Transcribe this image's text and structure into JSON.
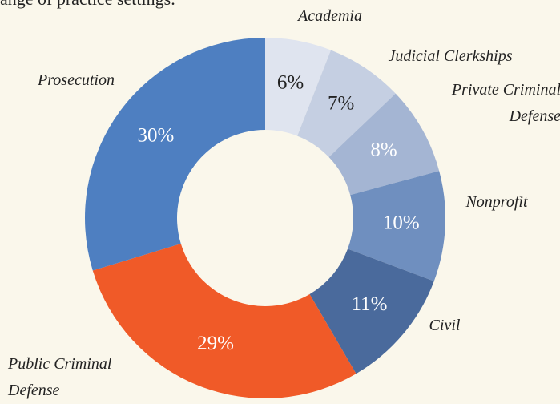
{
  "chart_data": {
    "type": "donut",
    "subtitle": "ange of practice settings.",
    "categories": [
      "Academia",
      "Judicial Clerkships",
      "Private Criminal Defense",
      "Nonprofit",
      "Civil",
      "Public Criminal Defense",
      "Prosecution"
    ],
    "values": [
      6,
      7,
      8,
      10,
      11,
      29,
      30
    ],
    "value_labels": [
      "6%",
      "7%",
      "8%",
      "10%",
      "11%",
      "29%",
      "30%"
    ],
    "colors": [
      "#dfe4ef",
      "#c5cfe2",
      "#a4b5d3",
      "#6f8fbf",
      "#4a6a9c",
      "#f05a28",
      "#4e7fc1"
    ]
  }
}
